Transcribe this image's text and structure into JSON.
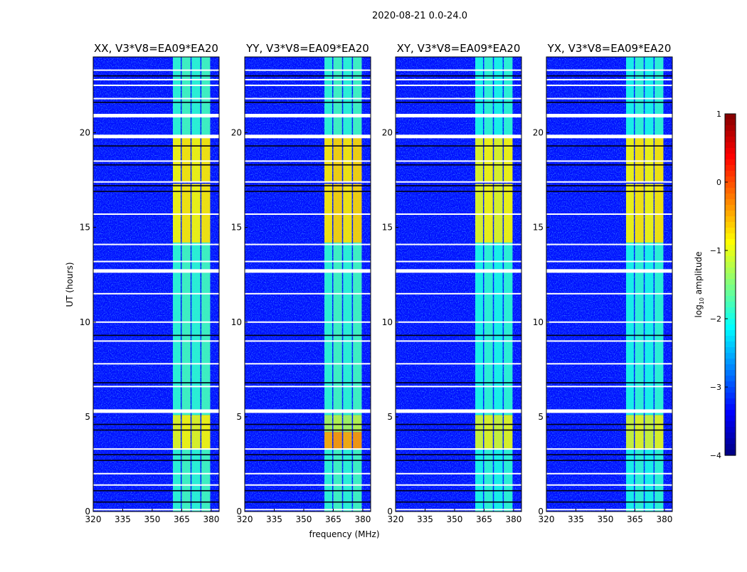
{
  "chart_data": {
    "type": "heatmap",
    "title": "2020-08-21 0.0-24.0",
    "xlabel": "frequency (MHz)",
    "ylabel": "UT (hours)",
    "xlim": [
      320,
      384
    ],
    "ylim": [
      0,
      24
    ],
    "xticks": [
      "320",
      "335",
      "350",
      "365",
      "380"
    ],
    "xtick_values": [
      320,
      335,
      350,
      365,
      380
    ],
    "yticks": [
      "0",
      "5",
      "10",
      "15",
      "20"
    ],
    "ytick_values": [
      0,
      5,
      10,
      15,
      20
    ],
    "colorbar": {
      "label": "log10 amplitude",
      "label_main": "log",
      "label_sub": "10",
      "label_rest": " amplitude",
      "range": [
        -4,
        1
      ],
      "ticks": [
        "1",
        "0",
        "−1",
        "−2",
        "−3",
        "−4"
      ],
      "tick_values": [
        1,
        0,
        -1,
        -2,
        -3,
        -4
      ],
      "colormap": "jet"
    },
    "background_level": -3.3,
    "band_freq_range": [
      360.5,
      380
    ],
    "band_subchannel_edges": [
      360.5,
      365,
      370,
      375,
      380
    ],
    "flagged_gaps_hours": [
      0.1,
      1.4,
      2.0,
      3.3,
      5.3,
      6.6,
      7.8,
      9.0,
      10.0,
      11.5,
      12.7,
      13.2,
      14.1,
      15.7,
      17.4,
      18.5,
      19.8,
      20.9,
      21.8,
      22.5,
      22.8,
      23.3
    ],
    "thick_gaps_hours": [
      5.3,
      12.7,
      19.8,
      20.9
    ],
    "dark_rows_hours": [
      0.5,
      1.1,
      2.7,
      3.0,
      4.3,
      4.6,
      6.8,
      9.3,
      16.9,
      17.2,
      18.3,
      19.3,
      21.6,
      23.0
    ],
    "panels": [
      {
        "title": "XX, V3*V8=EA09*EA20",
        "segments": [
          {
            "from": 0,
            "to": 3.3,
            "level": -1.9
          },
          {
            "from": 3.3,
            "to": 5.1,
            "level": -1.0
          },
          {
            "from": 5.1,
            "to": 14.2,
            "level": -1.9
          },
          {
            "from": 14.2,
            "to": 17.3,
            "level": -0.9
          },
          {
            "from": 17.4,
            "to": 19.8,
            "level": -0.9
          },
          {
            "from": 19.8,
            "to": 24,
            "level": -1.9
          }
        ]
      },
      {
        "title": "YY, V3*V8=EA09*EA20",
        "segments": [
          {
            "from": 0,
            "to": 3.3,
            "level": -1.9
          },
          {
            "from": 3.3,
            "to": 4.2,
            "level": -0.5
          },
          {
            "from": 4.2,
            "to": 5.1,
            "level": -1.3
          },
          {
            "from": 5.1,
            "to": 14.2,
            "level": -1.9
          },
          {
            "from": 14.2,
            "to": 17.3,
            "level": -0.8
          },
          {
            "from": 17.4,
            "to": 19.8,
            "level": -0.8
          },
          {
            "from": 19.8,
            "to": 24,
            "level": -1.9
          }
        ]
      },
      {
        "title": "XY, V3*V8=EA09*EA20",
        "segments": [
          {
            "from": 0,
            "to": 3.3,
            "level": -2.0
          },
          {
            "from": 3.3,
            "to": 5.1,
            "level": -1.1
          },
          {
            "from": 5.1,
            "to": 14.2,
            "level": -2.0
          },
          {
            "from": 14.2,
            "to": 17.3,
            "level": -1.0
          },
          {
            "from": 17.4,
            "to": 19.8,
            "level": -1.0
          },
          {
            "from": 19.8,
            "to": 24,
            "level": -2.0
          }
        ]
      },
      {
        "title": "YX, V3*V8=EA09*EA20",
        "segments": [
          {
            "from": 0,
            "to": 3.3,
            "level": -2.0
          },
          {
            "from": 3.3,
            "to": 5.1,
            "level": -1.1
          },
          {
            "from": 5.1,
            "to": 14.2,
            "level": -2.0
          },
          {
            "from": 14.2,
            "to": 17.3,
            "level": -0.9
          },
          {
            "from": 17.4,
            "to": 19.8,
            "level": -0.9
          },
          {
            "from": 19.8,
            "to": 24,
            "level": -2.0
          }
        ]
      }
    ]
  }
}
